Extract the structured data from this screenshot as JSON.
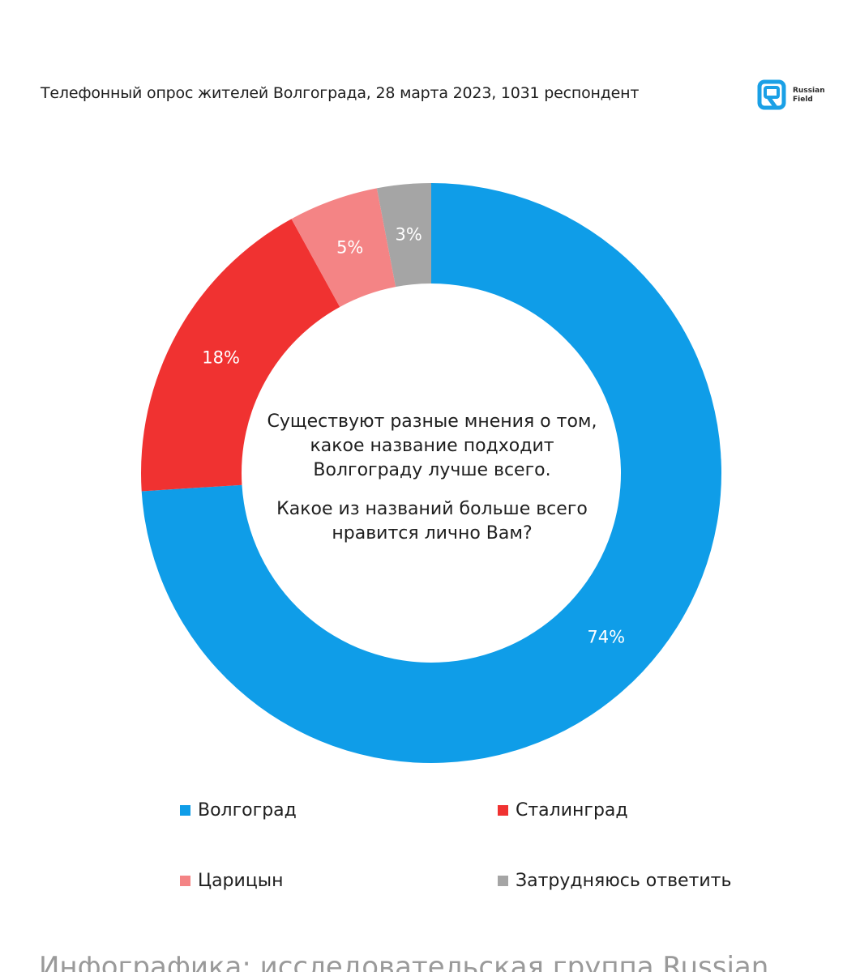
{
  "header": {
    "title": "Телефонный опрос жителей Волгограда, 28 марта 2023, 1031 респондент",
    "logo": {
      "icon": "russian-field-logo-mark",
      "line1": "Russian",
      "line2": "Field",
      "color": "#1aa0e6"
    }
  },
  "chart_data": {
    "type": "pie",
    "donut": true,
    "center_text": {
      "line1": "Существуют разные мнения о том,",
      "line2": "какое название подходит",
      "line3": "Волгограду лучше всего.",
      "line4": "Какое из названий больше всего",
      "line5": "нравится лично Вам?"
    },
    "slices": [
      {
        "name": "Волгоград",
        "value": 74,
        "label": "74%",
        "color": "#0f9de8"
      },
      {
        "name": "Сталинград",
        "value": 18,
        "label": "18%",
        "color": "#f03231"
      },
      {
        "name": "Царицын",
        "value": 5,
        "label": "5%",
        "color": "#f48485"
      },
      {
        "name": "Затрудняюсь ответить",
        "value": 3,
        "label": "3%",
        "color": "#a5a5a5"
      }
    ],
    "legend_placement": "bottom"
  },
  "caption": "Инфографика: исследовательская группа Russian"
}
